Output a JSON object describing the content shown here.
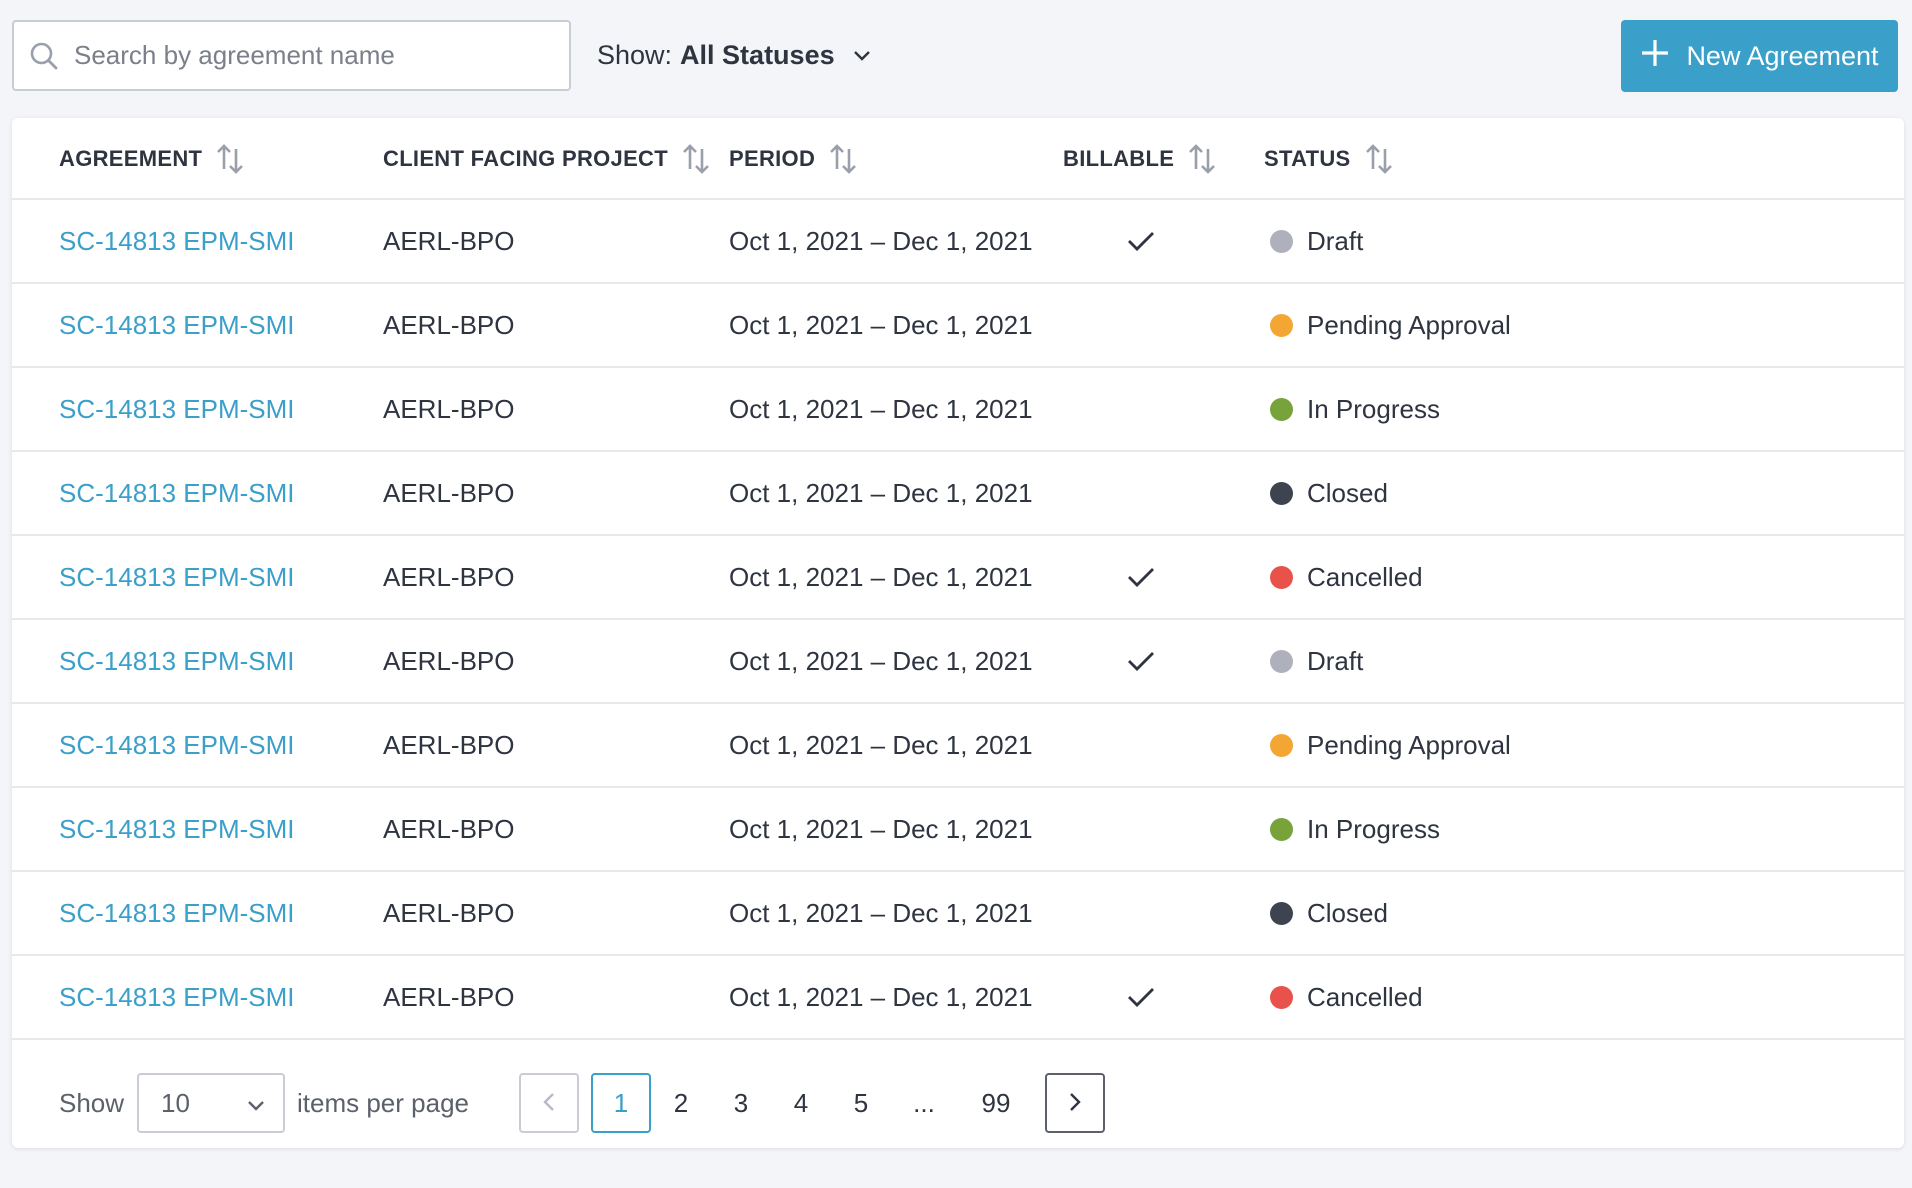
{
  "toolbar": {
    "search_placeholder": "Search by agreement name",
    "search_value": "",
    "show_label": "Show:",
    "show_value": "All Statuses",
    "new_button_label": "New Agreement"
  },
  "table": {
    "headers": {
      "agreement": "AGREEMENT",
      "project": "CLIENT FACING PROJECT",
      "period": "PERIOD",
      "billable": "BILLABLE",
      "status": "STATUS"
    },
    "rows": [
      {
        "agreement": "SC-14813 EPM-SMI",
        "project": "AERL-BPO",
        "period": "Oct 1, 2021 – Dec 1, 2021",
        "billable": true,
        "status": "Draft",
        "status_color": "#aeb0bb"
      },
      {
        "agreement": "SC-14813 EPM-SMI",
        "project": "AERL-BPO",
        "period": "Oct 1, 2021 – Dec 1, 2021",
        "billable": false,
        "status": "Pending Approval",
        "status_color": "#f3a632"
      },
      {
        "agreement": "SC-14813 EPM-SMI",
        "project": "AERL-BPO",
        "period": "Oct 1, 2021 – Dec 1, 2021",
        "billable": false,
        "status": "In Progress",
        "status_color": "#77a33a"
      },
      {
        "agreement": "SC-14813 EPM-SMI",
        "project": "AERL-BPO",
        "period": "Oct 1, 2021 – Dec 1, 2021",
        "billable": false,
        "status": "Closed",
        "status_color": "#3e4350"
      },
      {
        "agreement": "SC-14813 EPM-SMI",
        "project": "AERL-BPO",
        "period": "Oct 1, 2021 – Dec 1, 2021",
        "billable": true,
        "status": "Cancelled",
        "status_color": "#e9524b"
      },
      {
        "agreement": "SC-14813 EPM-SMI",
        "project": "AERL-BPO",
        "period": "Oct 1, 2021 – Dec 1, 2021",
        "billable": true,
        "status": "Draft",
        "status_color": "#aeb0bb"
      },
      {
        "agreement": "SC-14813 EPM-SMI",
        "project": "AERL-BPO",
        "period": "Oct 1, 2021 – Dec 1, 2021",
        "billable": false,
        "status": "Pending Approval",
        "status_color": "#f3a632"
      },
      {
        "agreement": "SC-14813 EPM-SMI",
        "project": "AERL-BPO",
        "period": "Oct 1, 2021 – Dec 1, 2021",
        "billable": false,
        "status": "In Progress",
        "status_color": "#77a33a"
      },
      {
        "agreement": "SC-14813 EPM-SMI",
        "project": "AERL-BPO",
        "period": "Oct 1, 2021 – Dec 1, 2021",
        "billable": false,
        "status": "Closed",
        "status_color": "#3e4350"
      },
      {
        "agreement": "SC-14813 EPM-SMI",
        "project": "AERL-BPO",
        "period": "Oct 1, 2021 – Dec 1, 2021",
        "billable": true,
        "status": "Cancelled",
        "status_color": "#e9524b"
      }
    ]
  },
  "pagination": {
    "show_label": "Show",
    "per_page_value": "10",
    "per_page_label": "items per page",
    "pages": [
      "1",
      "2",
      "3",
      "4",
      "5",
      "...",
      "99"
    ],
    "current_page": "1"
  },
  "colors": {
    "accent": "#3a9fc9",
    "background": "#f4f5f8"
  },
  "icons": {
    "search": "search-icon",
    "filter_chevron": "chevron-down-icon",
    "new": "plus-icon",
    "sort": "sort-icon",
    "billable": "checkmark-icon",
    "prev": "chevron-left-icon",
    "next": "chevron-right-icon"
  }
}
